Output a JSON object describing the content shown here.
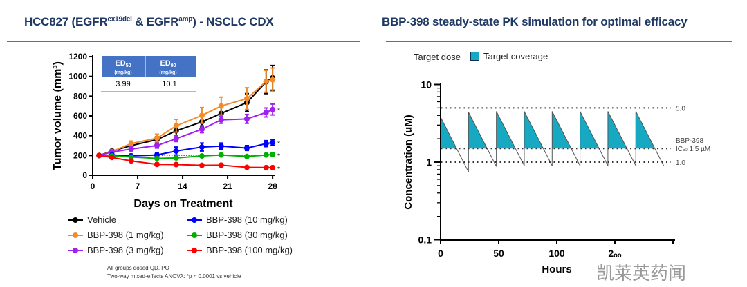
{
  "left": {
    "title_pre": "HCC827 (EGFR",
    "title_sup1": "ex19del",
    "title_mid": " & EGFR",
    "title_sup2": "amp",
    "title_post": ") - NSCLC CDX",
    "table": {
      "h1": "ED",
      "h1sub": "50",
      "h2": "ED",
      "h2sub": "90",
      "unit": "(mg/kg)",
      "v1": "3.99",
      "v2": "10.1",
      "header_color": "#4472c4"
    },
    "footnote1": "All groups dosed QD, PO",
    "footnote2": "Two-way mixed-effects ANOVA: *p < 0.0001 vs vehicle"
  },
  "right": {
    "title": "BBP-398 steady-state PK simulation for optimal efficacy",
    "watermark": "凯莱英药闻"
  },
  "chart_data": [
    {
      "type": "line",
      "xlabel": "Days on Treatment",
      "ylabel": "Tumor volume (mm³)",
      "xlim": [
        0,
        28
      ],
      "ylim": [
        0,
        1200
      ],
      "xticks": [
        0,
        7,
        14,
        21,
        28
      ],
      "yticks": [
        0,
        200,
        400,
        600,
        800,
        1000,
        1200
      ],
      "legend": "bottom",
      "x": [
        1,
        3,
        6,
        10,
        13,
        17,
        20,
        24,
        27,
        28
      ],
      "series": [
        {
          "name": "Vehicle",
          "color": "#000000",
          "values": [
            200,
            245,
            300,
            360,
            450,
            540,
            625,
            735,
            945,
            985
          ],
          "err": [
            10,
            15,
            20,
            30,
            45,
            55,
            65,
            90,
            120,
            125
          ],
          "sig": false
        },
        {
          "name": "BBP-398 (1 mg/kg)",
          "color": "#f28c28",
          "values": [
            200,
            240,
            320,
            375,
            500,
            605,
            700,
            775,
            950,
            965
          ],
          "err": [
            10,
            15,
            25,
            40,
            65,
            80,
            90,
            110,
            110,
            120
          ],
          "sig": false
        },
        {
          "name": "BBP-398 (3 mg/kg)",
          "color": "#a020f0",
          "values": [
            200,
            235,
            265,
            300,
            370,
            465,
            560,
            570,
            635,
            665
          ],
          "err": [
            10,
            12,
            20,
            25,
            30,
            35,
            35,
            45,
            45,
            55
          ],
          "sig": true
        },
        {
          "name": "BBP-398 (10 mg/kg)",
          "color": "#0000ff",
          "values": [
            200,
            205,
            195,
            205,
            245,
            285,
            295,
            275,
            320,
            330
          ],
          "err": [
            10,
            10,
            20,
            25,
            40,
            40,
            30,
            25,
            30,
            30
          ],
          "sig": true
        },
        {
          "name": "BBP-398 (30 mg/kg)",
          "color": "#00b000",
          "values": [
            200,
            195,
            185,
            170,
            175,
            195,
            205,
            190,
            205,
            210
          ],
          "err": [
            5,
            5,
            8,
            8,
            8,
            8,
            8,
            8,
            8,
            8
          ],
          "sig": true
        },
        {
          "name": "BBP-398 (100 mg/kg)",
          "color": "#ff0000",
          "values": [
            200,
            180,
            145,
            110,
            108,
            100,
            102,
            80,
            78,
            78
          ],
          "err": [
            5,
            5,
            8,
            8,
            6,
            6,
            6,
            6,
            5,
            5
          ],
          "sig": true
        }
      ],
      "sig_marker": "*",
      "reference_line": 200
    },
    {
      "type": "line",
      "xlabel": "Hours",
      "ylabel": "Concentration (uM)",
      "xlim": [
        0,
        200
      ],
      "ylim": [
        0.1,
        10
      ],
      "yscale": "log",
      "xticks": [
        "0",
        "50",
        "100",
        "2ₒₒ"
      ],
      "yticks": [
        "0.1",
        "1",
        "10"
      ],
      "legend": "top-left",
      "series": [
        {
          "name": "Target dose",
          "color": "#555555",
          "dose_interval_h": 24,
          "peaks": [
            3.8,
            4.4,
            4.5,
            4.5,
            4.5,
            4.5,
            4.5,
            4.5
          ],
          "troughs": [
            0.75,
            0.88,
            0.9,
            0.9,
            0.9,
            0.9,
            0.9,
            0.9
          ]
        },
        {
          "name": "Target coverage",
          "color": "#17a9c1"
        }
      ],
      "hlines": [
        {
          "value": 5.0,
          "label": "5.0"
        },
        {
          "value": 1.5,
          "label_a": "BBP-398",
          "label_b": "IC",
          "label_sub": "50",
          "label_c": " 1.5 µM"
        },
        {
          "value": 1.0,
          "label": "1.0"
        }
      ]
    }
  ]
}
